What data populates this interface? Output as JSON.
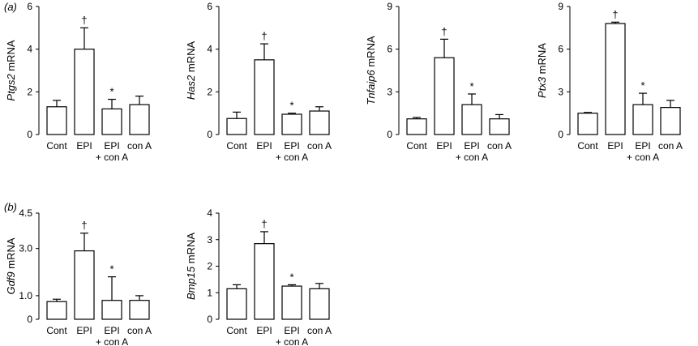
{
  "panel_labels": [
    "(a)",
    "(b)"
  ],
  "shared": {
    "categories": [
      "Cont",
      "EPI",
      "EPI",
      "con A"
    ],
    "category_sublabels": [
      "",
      "",
      "+ con A",
      ""
    ]
  },
  "chart_data": [
    {
      "type": "bar",
      "panel": "(a)",
      "ylabel_gene": "Ptgs2",
      "ylabel_suffix": " mRNA",
      "categories": [
        "Cont",
        "EPI",
        "EPI + con A",
        "con A"
      ],
      "values": [
        1.3,
        4.0,
        1.2,
        1.4
      ],
      "errors": [
        0.3,
        1.0,
        0.45,
        0.4
      ],
      "marks": [
        "",
        "†",
        "*",
        ""
      ],
      "ylim": [
        0,
        6
      ],
      "yticks": [
        0,
        2,
        4,
        6
      ],
      "ytick_labels": [
        "0",
        "2",
        "4",
        "6"
      ]
    },
    {
      "type": "bar",
      "panel": "(a)",
      "ylabel_gene": "Has2",
      "ylabel_suffix": " mRNA",
      "categories": [
        "Cont",
        "EPI",
        "EPI + con A",
        "con A"
      ],
      "values": [
        0.75,
        3.5,
        0.95,
        1.1
      ],
      "errors": [
        0.3,
        0.75,
        0.05,
        0.2
      ],
      "marks": [
        "",
        "†",
        "*",
        ""
      ],
      "ylim": [
        0,
        6
      ],
      "yticks": [
        0,
        2,
        4,
        6
      ],
      "ytick_labels": [
        "0",
        "2",
        "4",
        "6"
      ]
    },
    {
      "type": "bar",
      "panel": "(a)",
      "ylabel_gene": "Tnfaip6",
      "ylabel_suffix": " mRNA",
      "categories": [
        "Cont",
        "EPI",
        "EPI + con A",
        "con A"
      ],
      "values": [
        1.1,
        5.4,
        2.1,
        1.1
      ],
      "errors": [
        0.1,
        1.3,
        0.75,
        0.3
      ],
      "marks": [
        "",
        "†",
        "*",
        ""
      ],
      "ylim": [
        0,
        9
      ],
      "yticks": [
        0,
        3,
        6,
        9
      ],
      "ytick_labels": [
        "0",
        "3",
        "6",
        "9"
      ]
    },
    {
      "type": "bar",
      "panel": "(a)",
      "ylabel_gene": "Ptx3",
      "ylabel_suffix": " mRNA",
      "categories": [
        "Cont",
        "EPI",
        "EPI + con A",
        "con A"
      ],
      "values": [
        1.5,
        7.8,
        2.1,
        1.9
      ],
      "errors": [
        0.05,
        0.1,
        0.8,
        0.5
      ],
      "marks": [
        "",
        "†",
        "*",
        ""
      ],
      "ylim": [
        0,
        9
      ],
      "yticks": [
        0,
        3,
        6,
        9
      ],
      "ytick_labels": [
        "0",
        "3",
        "6",
        "9"
      ]
    },
    {
      "type": "bar",
      "panel": "(b)",
      "ylabel_gene": "Gdf9",
      "ylabel_suffix": " mRNA",
      "categories": [
        "Cont",
        "EPI",
        "EPI + con A",
        "con A"
      ],
      "values": [
        0.75,
        2.9,
        0.8,
        0.8
      ],
      "errors": [
        0.1,
        0.75,
        1.0,
        0.2
      ],
      "marks": [
        "",
        "†",
        "*",
        ""
      ],
      "ylim": [
        0,
        4.5
      ],
      "yticks": [
        0,
        1.0,
        3.0,
        4.5
      ],
      "ytick_labels": [
        "0",
        "1.0",
        "3.0",
        "4.5"
      ]
    },
    {
      "type": "bar",
      "panel": "(b)",
      "ylabel_gene": "Bmp15",
      "ylabel_suffix": " mRNA",
      "categories": [
        "Cont",
        "EPI",
        "EPI + con A",
        "con A"
      ],
      "values": [
        1.15,
        2.85,
        1.25,
        1.15
      ],
      "errors": [
        0.15,
        0.45,
        0.05,
        0.2
      ],
      "marks": [
        "",
        "†",
        "*",
        ""
      ],
      "ylim": [
        0,
        4
      ],
      "yticks": [
        0,
        1,
        2,
        3,
        4
      ],
      "ytick_labels": [
        "0",
        "1",
        "2",
        "3",
        "4"
      ]
    }
  ]
}
